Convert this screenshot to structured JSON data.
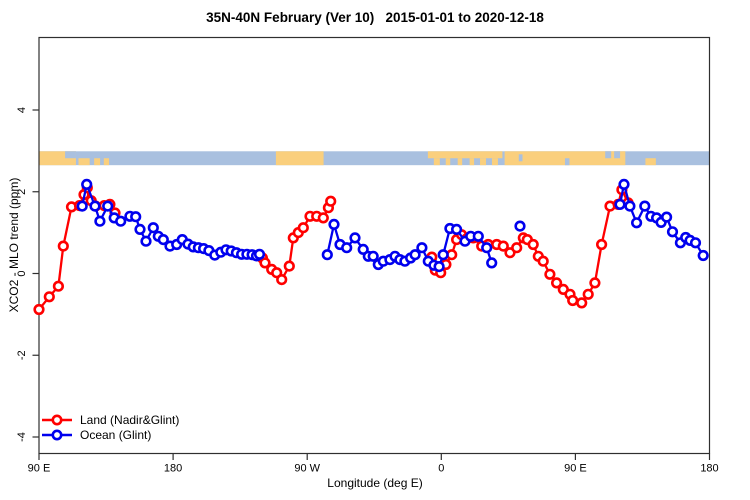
{
  "title": "35N-40N February (Ver 10)   2015-01-01 to 2020-12-18",
  "axes": {
    "x_label": "Longitude (deg E)",
    "y_label": "XCO2 - MLO trend (ppm)",
    "x_ticks": [
      {
        "lon": 90,
        "label": "90 E"
      },
      {
        "lon": 180,
        "label": "180"
      },
      {
        "lon": 270,
        "label": "90 W"
      },
      {
        "lon": 360,
        "label": "0"
      },
      {
        "lon": 450,
        "label": "90 E"
      },
      {
        "lon": 540,
        "label": "180"
      }
    ],
    "y_ticks": [
      {
        "value": 4,
        "label": "4"
      },
      {
        "value": 2,
        "label": "2"
      },
      {
        "value": 0,
        "label": "0"
      },
      {
        "value": -2,
        "label": "-2"
      },
      {
        "value": -4,
        "label": "-4"
      }
    ]
  },
  "legend": {
    "items": [
      {
        "label": "Land (Nadir&Glint)",
        "color": "#ff0000"
      },
      {
        "label": "Ocean (Glint)",
        "color": "#0000ee"
      }
    ]
  },
  "chart_data": {
    "type": "line",
    "title": "35N-40N February (Ver 10)   2015-01-01 to 2020-12-18",
    "xlabel": "Longitude (deg E)",
    "ylabel": "XCO2 - MLO trend (ppm)",
    "x_axis_note": "longitude axis runs 90E eastward around the globe to 180 (90E,180,90W,0,90E,180)",
    "xlim_deg": [
      90,
      540
    ],
    "ylim": [
      -4.4,
      5.75
    ],
    "grid": false,
    "legend_position": "bottom-left",
    "marker": "open-circle",
    "series": [
      {
        "name": "Land (Nadir&Glint)",
        "color": "#ff0000",
        "segments": [
          [
            [
              90,
              -0.88
            ],
            [
              96.9,
              -0.57
            ],
            [
              103,
              -0.31
            ],
            [
              106.3,
              0.67
            ],
            [
              111.8,
              1.63
            ],
            [
              117.2,
              1.66
            ],
            [
              120.2,
              1.93
            ],
            [
              122.4,
              2.1
            ],
            [
              125,
              1.78
            ],
            [
              128,
              1.65
            ],
            [
              133.8,
              1.66
            ],
            [
              137.6,
              1.69
            ],
            [
              141,
              1.48
            ]
          ],
          [
            [
              239.9,
              0.38
            ],
            [
              241.7,
              0.26
            ],
            [
              246.2,
              0.1
            ],
            [
              249.5,
              0.02
            ],
            [
              252.9,
              -0.15
            ],
            [
              258,
              0.18
            ],
            [
              260.7,
              0.87
            ],
            [
              264,
              1.0
            ],
            [
              267.4,
              1.12
            ],
            [
              271.9,
              1.4
            ],
            [
              276.4,
              1.4
            ],
            [
              280.8,
              1.36
            ],
            [
              284.2,
              1.61
            ],
            [
              285.8,
              1.77
            ]
          ],
          [
            [
              353.6,
              0.4
            ],
            [
              356,
              0.08
            ],
            [
              359.6,
              0.02
            ],
            [
              363.1,
              0.22
            ],
            [
              367,
              0.46
            ],
            [
              370.3,
              0.83
            ],
            [
              373.6,
              0.95
            ],
            [
              377,
              0.85
            ],
            [
              381.5,
              0.87
            ],
            [
              387.1,
              0.67
            ],
            [
              391.5,
              0.71
            ],
            [
              397.2,
              0.71
            ],
            [
              401.6,
              0.67
            ],
            [
              406.1,
              0.51
            ],
            [
              410.6,
              0.63
            ],
            [
              415,
              0.87
            ],
            [
              417.7,
              0.83
            ],
            [
              421.7,
              0.71
            ],
            [
              425.1,
              0.42
            ],
            [
              428.4,
              0.3
            ],
            [
              432.9,
              -0.02
            ],
            [
              437.4,
              -0.23
            ],
            [
              441.9,
              -0.39
            ],
            [
              446.4,
              -0.51
            ],
            [
              448.2,
              -0.66
            ],
            [
              454.2,
              -0.72
            ],
            [
              458.6,
              -0.51
            ],
            [
              463.1,
              -0.23
            ],
            [
              467.6,
              0.71
            ],
            [
              473.2,
              1.65
            ],
            [
              478.7,
              1.69
            ],
            [
              481.2,
              2.05
            ],
            [
              485.4,
              1.73
            ]
          ]
        ]
      },
      {
        "name": "Ocean (Glint)",
        "color": "#0000ee",
        "segments": [
          [
            [
              119,
              1.65
            ],
            [
              122,
              2.18
            ],
            [
              127.6,
              1.65
            ],
            [
              130.9,
              1.28
            ],
            [
              136.1,
              1.65
            ],
            [
              140.5,
              1.36
            ],
            [
              144.8,
              1.28
            ],
            [
              151,
              1.4
            ],
            [
              154.9,
              1.39
            ],
            [
              157.8,
              1.08
            ],
            [
              161.8,
              0.79
            ],
            [
              166.7,
              1.12
            ],
            [
              170.1,
              0.91
            ],
            [
              173.4,
              0.83
            ],
            [
              177.9,
              0.67
            ],
            [
              182.4,
              0.71
            ],
            [
              186.2,
              0.83
            ],
            [
              190,
              0.72
            ],
            [
              193.5,
              0.65
            ],
            [
              197,
              0.63
            ],
            [
              200.5,
              0.61
            ],
            [
              204,
              0.56
            ],
            [
              208,
              0.45
            ],
            [
              212,
              0.52
            ],
            [
              215.5,
              0.58
            ],
            [
              219,
              0.55
            ],
            [
              222.5,
              0.51
            ],
            [
              226,
              0.47
            ],
            [
              229.5,
              0.47
            ],
            [
              233,
              0.46
            ],
            [
              236,
              0.43
            ],
            [
              238,
              0.47
            ]
          ],
          [
            [
              283.5,
              0.46
            ],
            [
              288,
              1.2
            ],
            [
              292,
              0.71
            ],
            [
              296.5,
              0.63
            ],
            [
              302.1,
              0.87
            ],
            [
              307.6,
              0.59
            ],
            [
              311,
              0.42
            ],
            [
              314.3,
              0.42
            ],
            [
              317.7,
              0.22
            ],
            [
              321.1,
              0.3
            ],
            [
              325.5,
              0.34
            ],
            [
              328.9,
              0.42
            ],
            [
              332.2,
              0.34
            ],
            [
              335.6,
              0.3
            ],
            [
              339.4,
              0.38
            ],
            [
              342.4,
              0.46
            ],
            [
              347,
              0.63
            ],
            [
              351.3,
              0.3
            ],
            [
              355,
              0.2
            ],
            [
              358.5,
              0.17
            ],
            [
              361.3,
              0.46
            ],
            [
              365.8,
              1.1
            ],
            [
              370.3,
              1.08
            ],
            [
              375.9,
              0.79
            ],
            [
              379.7,
              0.91
            ],
            [
              384.8,
              0.91
            ],
            [
              390.5,
              0.63
            ],
            [
              393.8,
              0.26
            ]
          ],
          [
            [
              412.8,
              1.16
            ]
          ],
          [
            [
              479.9,
              1.69
            ],
            [
              482.6,
              2.18
            ],
            [
              486.6,
              1.65
            ],
            [
              491.1,
              1.24
            ],
            [
              496.6,
              1.65
            ],
            [
              500.7,
              1.4
            ],
            [
              504.5,
              1.36
            ],
            [
              507.5,
              1.25
            ],
            [
              511.2,
              1.38
            ],
            [
              515.2,
              1.02
            ],
            [
              520.5,
              0.75
            ],
            [
              524,
              0.88
            ],
            [
              527,
              0.81
            ],
            [
              530.6,
              0.75
            ],
            [
              535.8,
              0.44
            ]
          ]
        ]
      }
    ],
    "land_ocean_strip": {
      "description": "horizontal land/ocean map strip for the 35N-40N band",
      "ppm_top": 2.99,
      "ppm_bottom": 2.65,
      "ocean_color": "#a9c0df",
      "land_color": "#facf7d",
      "land_segments": [
        {
          "from": 90,
          "to": 114.8,
          "part": "full"
        },
        {
          "from": 116.5,
          "to": 124,
          "part": "bottom"
        },
        {
          "from": 127,
          "to": 131,
          "part": "bottom"
        },
        {
          "from": 133.5,
          "to": 137,
          "part": "bottom"
        },
        {
          "from": 249,
          "to": 281,
          "part": "full"
        },
        {
          "from": 351,
          "to": 401,
          "part": "top"
        },
        {
          "from": 355,
          "to": 359,
          "part": "bottom"
        },
        {
          "from": 363,
          "to": 366,
          "part": "bottom"
        },
        {
          "from": 371,
          "to": 374,
          "part": "bottom"
        },
        {
          "from": 379,
          "to": 382,
          "part": "bottom"
        },
        {
          "from": 386,
          "to": 390,
          "part": "bottom"
        },
        {
          "from": 394,
          "to": 398,
          "part": "bottom"
        },
        {
          "from": 402.5,
          "to": 483.5,
          "part": "full"
        },
        {
          "from": 497,
          "to": 504,
          "part": "bottom"
        }
      ],
      "water_patches": [
        {
          "from": 107.5,
          "to": 114.8,
          "part": "top"
        },
        {
          "from": 412,
          "to": 414.5,
          "part": "mid"
        },
        {
          "from": 443,
          "to": 446,
          "part": "bottom"
        },
        {
          "from": 470,
          "to": 474,
          "part": "top"
        },
        {
          "from": 476,
          "to": 480,
          "part": "top"
        }
      ]
    }
  },
  "colors": {
    "background": "#ffffff",
    "axis": "#2f2f2f",
    "land_series": "#ff0000",
    "ocean_series": "#0000ee",
    "strip_ocean": "#a9c0df",
    "strip_land": "#facf7d"
  }
}
